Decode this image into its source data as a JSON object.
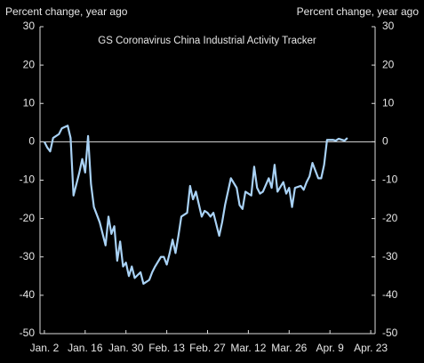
{
  "chart_data": {
    "type": "line",
    "title": "GS Coronavirus China Industrial Activity Tracker",
    "y_label": "Percent change, year ago",
    "y2_label": "Percent change, year ago",
    "x": [
      0,
      1,
      2,
      3,
      5,
      6,
      8,
      9,
      10,
      12,
      13,
      14,
      15,
      16,
      17,
      19,
      21,
      22,
      23,
      24,
      25,
      26,
      27,
      28,
      29,
      30,
      31,
      33,
      34,
      35,
      36,
      37,
      38,
      40,
      41,
      42,
      43,
      44,
      45,
      46,
      47,
      49,
      50,
      51,
      52,
      54,
      55,
      56,
      57,
      58,
      60,
      61,
      62,
      63,
      64,
      66,
      67,
      68,
      69,
      71,
      72,
      73,
      74,
      75,
      77,
      78,
      79,
      80,
      82,
      83,
      84,
      85,
      86,
      88,
      89,
      90,
      91,
      92,
      94,
      95,
      96,
      97,
      99,
      100,
      101,
      103,
      104
    ],
    "series": [
      {
        "name": "GS Coronavirus China Industrial Activity Tracker",
        "color": "#a9d2f5",
        "values": [
          0,
          -1.5,
          -2.5,
          1,
          2,
          3.5,
          4.2,
          1,
          -14,
          -8,
          -4.5,
          -8,
          1.5,
          -11,
          -17,
          -21,
          -27,
          -19.5,
          -24,
          -22,
          -31,
          -26,
          -32.5,
          -31.5,
          -35,
          -32.5,
          -35.5,
          -34,
          -37,
          -36.5,
          -36,
          -34,
          -32.5,
          -30,
          -30,
          -32,
          -29,
          -25.5,
          -29,
          -24.5,
          -19.5,
          -18.5,
          -11.5,
          -15,
          -13,
          -19.5,
          -18,
          -18.5,
          -19.5,
          -18.5,
          -24.5,
          -21,
          -16.5,
          -13,
          -9.5,
          -12,
          -16.5,
          -17.5,
          -13,
          -14,
          -6.5,
          -12,
          -13.5,
          -13,
          -9.5,
          -12,
          -6,
          -13,
          -10.5,
          -13.5,
          -12,
          -17,
          -12,
          -11.5,
          -12.5,
          -10.5,
          -9,
          -5.5,
          -9.5,
          -9.5,
          -6,
          0.5,
          0.5,
          0.3,
          0.8,
          0.3,
          1
        ]
      }
    ],
    "xlim": [
      -1.5,
      113.5
    ],
    "xticks": [
      {
        "value": 0,
        "label": "Jan. 2"
      },
      {
        "value": 14,
        "label": "Jan. 16"
      },
      {
        "value": 28,
        "label": "Jan. 30"
      },
      {
        "value": 42,
        "label": "Feb. 13"
      },
      {
        "value": 56,
        "label": "Feb. 27"
      },
      {
        "value": 70,
        "label": "Mar. 12"
      },
      {
        "value": 84,
        "label": "Mar. 26"
      },
      {
        "value": 98,
        "label": "Apr. 9"
      },
      {
        "value": 112,
        "label": "Apr. 23"
      }
    ],
    "ylim": [
      -50,
      30
    ],
    "yticks": [
      -50,
      -40,
      -30,
      -20,
      -10,
      0,
      10,
      20,
      30
    ],
    "y2lim": [
      -50,
      30
    ],
    "y2ticks": [
      -50,
      -40,
      -30,
      -20,
      -10,
      0,
      10,
      20,
      30
    ],
    "grid": false
  }
}
